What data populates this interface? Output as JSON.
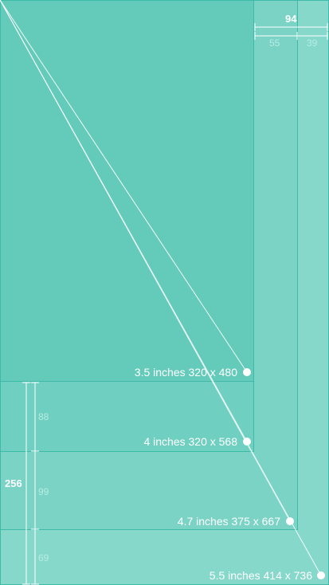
{
  "screens": [
    {
      "name": "3.5 inches 320 x 480",
      "width": 320,
      "height": 480
    },
    {
      "name": "4 inches 320 x 568",
      "width": 320,
      "height": 568
    },
    {
      "name": "4.7 inches 375 x 667",
      "width": 375,
      "height": 667
    },
    {
      "name": "5.5 inches 414 x 736",
      "width": 414,
      "height": 736
    }
  ],
  "horizontal_dims": {
    "total": "94",
    "part_a": "55",
    "part_b": "39"
  },
  "vertical_dims": {
    "total": "256",
    "part_a": "88",
    "part_b": "99",
    "part_c": "69"
  },
  "colors": {
    "screen_35": "#64cbbb",
    "screen_4": "#6fcfc0",
    "screen_47": "#7ad3c5",
    "screen_55": "#86d8cb",
    "border": "#3dbba8",
    "line": "#ffffff",
    "dim_text": "#b8ebe3"
  }
}
